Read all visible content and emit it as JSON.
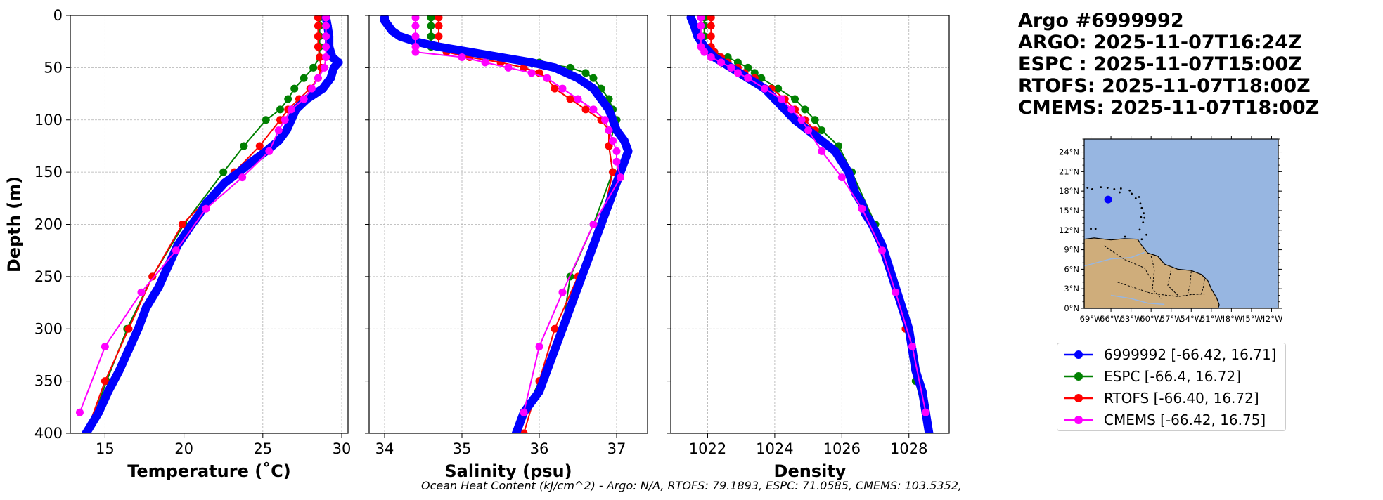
{
  "title_block": {
    "float_id": "Argo #6999992",
    "argo_time": "ARGO: 2025-11-07T16:24Z",
    "espc_time": "ESPC : 2025-11-07T15:00Z",
    "rtofs_time": "RTOFS: 2025-11-07T18:00Z",
    "cmems_time": "CMEMS: 2025-11-07T18:00Z"
  },
  "footer_text": "Ocean Heat Content (kJ/cm^2) - Argo: N/A,  RTOFS: 79.1893,  ESPC: 71.0585,  CMEMS: 103.5352,",
  "legend": [
    {
      "label": "6999992 [-66.42, 16.71]",
      "color": "#0000ff"
    },
    {
      "label": "ESPC [-66.4, 16.72]",
      "color": "#008000"
    },
    {
      "label": "RTOFS [-66.40, 16.72]",
      "color": "#ff0000"
    },
    {
      "label": "CMEMS [-66.42, 16.75]",
      "color": "#ff00ff"
    }
  ],
  "chart_data": [
    {
      "type": "line",
      "id": "temperature",
      "title": "",
      "xlabel": "Temperature (˚C)",
      "ylabel": "Depth (m)",
      "xlim": [
        12.8,
        30.4
      ],
      "ylim": [
        400,
        0
      ],
      "xticks": [
        15,
        20,
        25,
        30
      ],
      "yticks": [
        0,
        50,
        100,
        150,
        200,
        250,
        300,
        350,
        400
      ],
      "grid": true,
      "series": [
        {
          "name": "6999992",
          "color": "#0000ff",
          "dense": true,
          "depth": [
            2,
            10,
            20,
            30,
            40,
            45,
            50,
            60,
            70,
            80,
            90,
            100,
            110,
            120,
            130,
            140,
            150,
            160,
            170,
            180,
            190,
            200,
            220,
            240,
            260,
            280,
            300,
            320,
            340,
            360,
            380,
            400
          ],
          "values": [
            29.0,
            29.1,
            29.2,
            29.2,
            29.4,
            29.8,
            29.5,
            29.3,
            28.8,
            27.8,
            27.1,
            26.8,
            26.5,
            26.0,
            25.2,
            24.3,
            23.5,
            22.6,
            22.0,
            21.4,
            21.0,
            20.5,
            19.6,
            19.0,
            18.4,
            17.6,
            17.1,
            16.5,
            15.9,
            15.2,
            14.6,
            13.8
          ]
        },
        {
          "name": "ESPC",
          "color": "#008000",
          "depth": [
            2,
            10,
            20,
            30,
            40,
            50,
            60,
            70,
            80,
            90,
            100,
            125,
            150,
            200,
            250,
            300,
            350,
            400
          ],
          "values": [
            28.6,
            28.6,
            28.6,
            28.6,
            28.6,
            28.2,
            27.6,
            27.0,
            26.6,
            26.1,
            25.2,
            23.8,
            22.5,
            20.0,
            18.0,
            16.4,
            15.1,
            13.9
          ]
        },
        {
          "name": "RTOFS",
          "color": "#ff0000",
          "depth": [
            2,
            10,
            20,
            30,
            40,
            50,
            60,
            70,
            80,
            90,
            100,
            125,
            150,
            200,
            250,
            300,
            350,
            400
          ],
          "values": [
            28.5,
            28.5,
            28.5,
            28.5,
            28.6,
            28.7,
            28.5,
            28.0,
            27.3,
            26.6,
            26.1,
            24.8,
            23.2,
            19.9,
            18.0,
            16.5,
            15.0,
            13.8
          ]
        },
        {
          "name": "CMEMS",
          "color": "#ff00ff",
          "depth": [
            2,
            10,
            20,
            30,
            40,
            50,
            60,
            70,
            80,
            90,
            100,
            110,
            130,
            155,
            185,
            225,
            265,
            317,
            380
          ],
          "values": [
            29.0,
            29.0,
            29.0,
            29.0,
            29.0,
            28.9,
            28.5,
            28.1,
            27.6,
            26.8,
            26.4,
            26.0,
            25.4,
            23.7,
            21.4,
            19.5,
            17.3,
            15.0,
            13.4
          ]
        }
      ]
    },
    {
      "type": "line",
      "id": "salinity",
      "title": "",
      "xlabel": "Salinity (psu)",
      "ylabel": "",
      "xlim": [
        33.8,
        37.4
      ],
      "ylim": [
        400,
        0
      ],
      "xticks": [
        34,
        35,
        36,
        37
      ],
      "yticks": [
        0,
        50,
        100,
        150,
        200,
        250,
        300,
        350,
        400
      ],
      "grid": true,
      "series": [
        {
          "name": "6999992",
          "color": "#0000ff",
          "dense": true,
          "depth": [
            2,
            5,
            10,
            15,
            20,
            25,
            30,
            35,
            40,
            45,
            50,
            60,
            70,
            80,
            90,
            100,
            110,
            120,
            130,
            140,
            150,
            160,
            180,
            200,
            220,
            240,
            260,
            280,
            300,
            320,
            340,
            360,
            380,
            400
          ],
          "values": [
            34.0,
            34.0,
            34.05,
            34.1,
            34.2,
            34.4,
            34.7,
            35.1,
            35.5,
            35.9,
            36.2,
            36.5,
            36.7,
            36.8,
            36.9,
            36.95,
            37.0,
            37.1,
            37.15,
            37.1,
            37.05,
            37.0,
            36.9,
            36.8,
            36.7,
            36.6,
            36.5,
            36.4,
            36.3,
            36.2,
            36.1,
            36.0,
            35.8,
            35.7
          ]
        },
        {
          "name": "ESPC",
          "color": "#008000",
          "depth": [
            2,
            10,
            20,
            30,
            40,
            45,
            50,
            55,
            60,
            70,
            80,
            90,
            100,
            125,
            150,
            200,
            250,
            300,
            350,
            400
          ],
          "values": [
            34.6,
            34.6,
            34.6,
            34.6,
            35.5,
            36.0,
            36.4,
            36.6,
            36.7,
            36.8,
            36.9,
            36.95,
            37.0,
            36.9,
            36.95,
            36.7,
            36.4,
            36.3,
            36.0,
            35.7
          ]
        },
        {
          "name": "RTOFS",
          "color": "#ff0000",
          "depth": [
            2,
            10,
            20,
            30,
            35,
            40,
            45,
            50,
            55,
            60,
            70,
            80,
            90,
            100,
            110,
            125,
            150,
            200,
            250,
            300,
            350,
            400
          ],
          "values": [
            34.7,
            34.7,
            34.7,
            34.7,
            34.8,
            35.1,
            35.5,
            35.8,
            36.0,
            36.1,
            36.2,
            36.4,
            36.6,
            36.8,
            36.9,
            36.9,
            36.95,
            36.8,
            36.5,
            36.2,
            36.0,
            35.8
          ]
        },
        {
          "name": "CMEMS",
          "color": "#ff00ff",
          "depth": [
            2,
            10,
            20,
            30,
            35,
            40,
            45,
            50,
            55,
            60,
            70,
            80,
            90,
            100,
            110,
            120,
            130,
            140,
            155,
            200,
            265,
            317,
            380
          ],
          "values": [
            34.4,
            34.4,
            34.4,
            34.4,
            34.4,
            35.0,
            35.3,
            35.6,
            35.9,
            36.1,
            36.3,
            36.5,
            36.7,
            36.85,
            36.9,
            36.95,
            37.0,
            37.0,
            37.05,
            36.7,
            36.3,
            36.0,
            35.8
          ]
        }
      ]
    },
    {
      "type": "line",
      "id": "density",
      "title": "",
      "xlabel": "Density",
      "ylabel": "",
      "xlim": [
        1020.9,
        1029.2
      ],
      "ylim": [
        400,
        0
      ],
      "xticks": [
        1022,
        1024,
        1026,
        1028
      ],
      "yticks": [
        0,
        50,
        100,
        150,
        200,
        250,
        300,
        350,
        400
      ],
      "grid": true,
      "series": [
        {
          "name": "6999992",
          "color": "#0000ff",
          "dense": true,
          "depth": [
            2,
            10,
            20,
            30,
            40,
            50,
            60,
            70,
            80,
            90,
            100,
            110,
            120,
            130,
            140,
            150,
            160,
            170,
            180,
            190,
            200,
            220,
            240,
            260,
            280,
            300,
            320,
            340,
            360,
            380,
            400
          ],
          "values": [
            1021.5,
            1021.6,
            1021.7,
            1021.9,
            1022.2,
            1022.7,
            1023.2,
            1023.7,
            1024.0,
            1024.3,
            1024.6,
            1025.0,
            1025.4,
            1025.8,
            1026.0,
            1026.2,
            1026.3,
            1026.4,
            1026.6,
            1026.7,
            1026.9,
            1027.2,
            1027.4,
            1027.6,
            1027.8,
            1028.0,
            1028.1,
            1028.2,
            1028.4,
            1028.5,
            1028.6
          ]
        },
        {
          "name": "ESPC",
          "color": "#008000",
          "depth": [
            2,
            10,
            20,
            30,
            35,
            40,
            45,
            50,
            55,
            60,
            70,
            80,
            90,
            100,
            110,
            125,
            150,
            200,
            250,
            300,
            350,
            400
          ],
          "values": [
            1021.9,
            1021.9,
            1021.9,
            1021.9,
            1022.2,
            1022.6,
            1022.9,
            1023.2,
            1023.4,
            1023.6,
            1024.1,
            1024.6,
            1024.9,
            1025.2,
            1025.4,
            1025.9,
            1026.3,
            1027.0,
            1027.5,
            1027.9,
            1028.2,
            1028.6
          ]
        },
        {
          "name": "RTOFS",
          "color": "#ff0000",
          "depth": [
            2,
            10,
            20,
            30,
            35,
            40,
            45,
            50,
            55,
            60,
            70,
            80,
            90,
            100,
            110,
            125,
            150,
            200,
            250,
            300,
            350,
            400
          ],
          "values": [
            1022.1,
            1022.1,
            1022.1,
            1022.1,
            1022.2,
            1022.4,
            1022.6,
            1022.9,
            1023.1,
            1023.4,
            1023.9,
            1024.3,
            1024.6,
            1024.9,
            1025.2,
            1025.6,
            1026.2,
            1026.9,
            1027.5,
            1027.9,
            1028.3,
            1028.6
          ]
        },
        {
          "name": "CMEMS",
          "color": "#ff00ff",
          "depth": [
            2,
            10,
            20,
            30,
            35,
            40,
            45,
            50,
            55,
            60,
            70,
            80,
            90,
            100,
            110,
            130,
            155,
            185,
            225,
            265,
            317,
            380
          ],
          "values": [
            1021.8,
            1021.8,
            1021.8,
            1021.8,
            1021.9,
            1022.1,
            1022.4,
            1022.7,
            1022.9,
            1023.2,
            1023.7,
            1024.2,
            1024.5,
            1024.8,
            1025.0,
            1025.4,
            1026.0,
            1026.6,
            1027.2,
            1027.6,
            1028.1,
            1028.5
          ]
        }
      ]
    }
  ],
  "map": {
    "lat_ticks": [
      "0°N",
      "3°N",
      "6°N",
      "9°N",
      "12°N",
      "15°N",
      "18°N",
      "21°N",
      "24°N"
    ],
    "lon_ticks": [
      "69°W",
      "66°W",
      "63°W",
      "60°W",
      "57°W",
      "54°W",
      "51°W",
      "48°W",
      "45°W",
      "42°W"
    ],
    "ocean_color": "#97b6e1",
    "land_color": "#cfad7b",
    "marker": {
      "lon": -66.42,
      "lat": 16.71,
      "color": "#0000ff"
    },
    "lon_range": [
      -70,
      -41
    ],
    "lat_range": [
      0,
      26
    ]
  }
}
